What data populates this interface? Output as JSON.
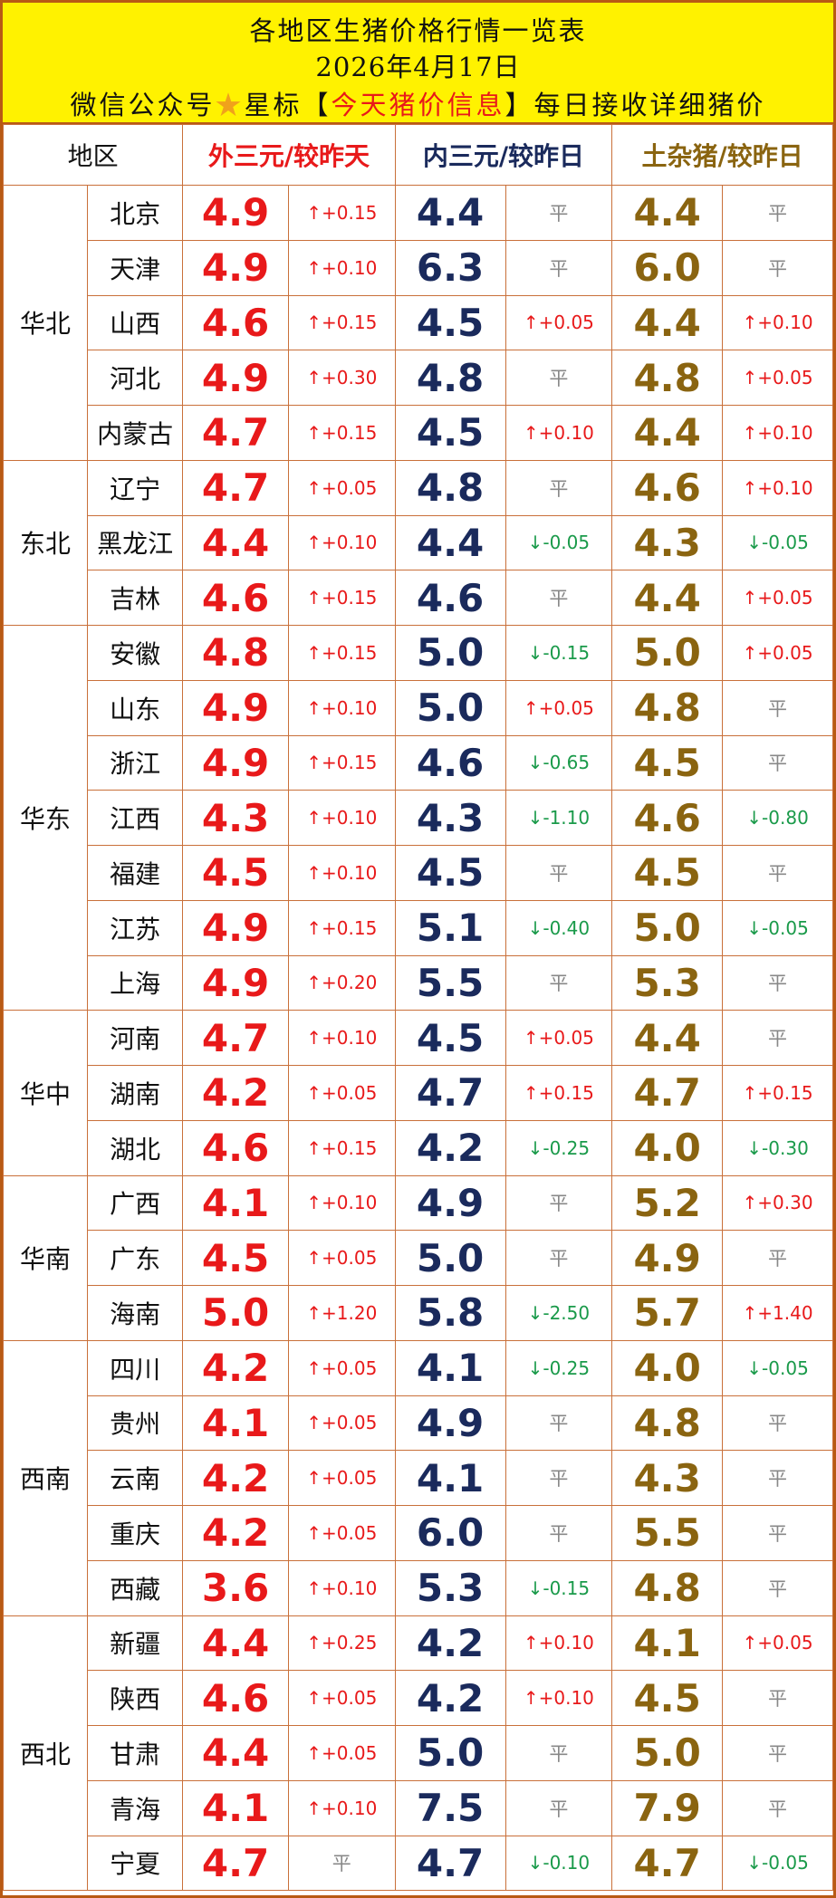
{
  "header": {
    "title": "各地区生猪价格行情一览表",
    "date": "2026年4月17日",
    "line3_prefix": "微信公众号",
    "line3_star": "★",
    "line3_mid": "星标【",
    "line3_highlight": "今天猪价信息",
    "line3_suffix": "】每日接收详细猪价"
  },
  "columns": {
    "area": "地区",
    "ext": "外三元/较昨天",
    "int": "内三元/较昨日",
    "tu": "土杂猪/较昨日"
  },
  "groups": [
    {
      "name": "华北",
      "rows": [
        {
          "prov": "北京",
          "ext": "4.9",
          "ext_chg": "↑+0.15",
          "int": "4.4",
          "int_chg": "平",
          "tu": "4.4",
          "tu_chg": "平"
        },
        {
          "prov": "天津",
          "ext": "4.9",
          "ext_chg": "↑+0.10",
          "int": "6.3",
          "int_chg": "平",
          "tu": "6.0",
          "tu_chg": "平"
        },
        {
          "prov": "山西",
          "ext": "4.6",
          "ext_chg": "↑+0.15",
          "int": "4.5",
          "int_chg": "↑+0.05",
          "tu": "4.4",
          "tu_chg": "↑+0.10"
        },
        {
          "prov": "河北",
          "ext": "4.9",
          "ext_chg": "↑+0.30",
          "int": "4.8",
          "int_chg": "平",
          "tu": "4.8",
          "tu_chg": "↑+0.05"
        },
        {
          "prov": "内蒙古",
          "ext": "4.7",
          "ext_chg": "↑+0.15",
          "int": "4.5",
          "int_chg": "↑+0.10",
          "tu": "4.4",
          "tu_chg": "↑+0.10"
        }
      ]
    },
    {
      "name": "东北",
      "rows": [
        {
          "prov": "辽宁",
          "ext": "4.7",
          "ext_chg": "↑+0.05",
          "int": "4.8",
          "int_chg": "平",
          "tu": "4.6",
          "tu_chg": "↑+0.10"
        },
        {
          "prov": "黑龙江",
          "ext": "4.4",
          "ext_chg": "↑+0.10",
          "int": "4.4",
          "int_chg": "↓-0.05",
          "tu": "4.3",
          "tu_chg": "↓-0.05"
        },
        {
          "prov": "吉林",
          "ext": "4.6",
          "ext_chg": "↑+0.15",
          "int": "4.6",
          "int_chg": "平",
          "tu": "4.4",
          "tu_chg": "↑+0.05"
        }
      ]
    },
    {
      "name": "华东",
      "rows": [
        {
          "prov": "安徽",
          "ext": "4.8",
          "ext_chg": "↑+0.15",
          "int": "5.0",
          "int_chg": "↓-0.15",
          "tu": "5.0",
          "tu_chg": "↑+0.05"
        },
        {
          "prov": "山东",
          "ext": "4.9",
          "ext_chg": "↑+0.10",
          "int": "5.0",
          "int_chg": "↑+0.05",
          "tu": "4.8",
          "tu_chg": "平"
        },
        {
          "prov": "浙江",
          "ext": "4.9",
          "ext_chg": "↑+0.15",
          "int": "4.6",
          "int_chg": "↓-0.65",
          "tu": "4.5",
          "tu_chg": "平"
        },
        {
          "prov": "江西",
          "ext": "4.3",
          "ext_chg": "↑+0.10",
          "int": "4.3",
          "int_chg": "↓-1.10",
          "tu": "4.6",
          "tu_chg": "↓-0.80"
        },
        {
          "prov": "福建",
          "ext": "4.5",
          "ext_chg": "↑+0.10",
          "int": "4.5",
          "int_chg": "平",
          "tu": "4.5",
          "tu_chg": "平"
        },
        {
          "prov": "江苏",
          "ext": "4.9",
          "ext_chg": "↑+0.15",
          "int": "5.1",
          "int_chg": "↓-0.40",
          "tu": "5.0",
          "tu_chg": "↓-0.05"
        },
        {
          "prov": "上海",
          "ext": "4.9",
          "ext_chg": "↑+0.20",
          "int": "5.5",
          "int_chg": "平",
          "tu": "5.3",
          "tu_chg": "平"
        }
      ]
    },
    {
      "name": "华中",
      "rows": [
        {
          "prov": "河南",
          "ext": "4.7",
          "ext_chg": "↑+0.10",
          "int": "4.5",
          "int_chg": "↑+0.05",
          "tu": "4.4",
          "tu_chg": "平"
        },
        {
          "prov": "湖南",
          "ext": "4.2",
          "ext_chg": "↑+0.05",
          "int": "4.7",
          "int_chg": "↑+0.15",
          "tu": "4.7",
          "tu_chg": "↑+0.15"
        },
        {
          "prov": "湖北",
          "ext": "4.6",
          "ext_chg": "↑+0.15",
          "int": "4.2",
          "int_chg": "↓-0.25",
          "tu": "4.0",
          "tu_chg": "↓-0.30"
        }
      ]
    },
    {
      "name": "华南",
      "rows": [
        {
          "prov": "广西",
          "ext": "4.1",
          "ext_chg": "↑+0.10",
          "int": "4.9",
          "int_chg": "平",
          "tu": "5.2",
          "tu_chg": "↑+0.30"
        },
        {
          "prov": "广东",
          "ext": "4.5",
          "ext_chg": "↑+0.05",
          "int": "5.0",
          "int_chg": "平",
          "tu": "4.9",
          "tu_chg": "平"
        },
        {
          "prov": "海南",
          "ext": "5.0",
          "ext_chg": "↑+1.20",
          "int": "5.8",
          "int_chg": "↓-2.50",
          "tu": "5.7",
          "tu_chg": "↑+1.40"
        }
      ]
    },
    {
      "name": "西南",
      "rows": [
        {
          "prov": "四川",
          "ext": "4.2",
          "ext_chg": "↑+0.05",
          "int": "4.1",
          "int_chg": "↓-0.25",
          "tu": "4.0",
          "tu_chg": "↓-0.05"
        },
        {
          "prov": "贵州",
          "ext": "4.1",
          "ext_chg": "↑+0.05",
          "int": "4.9",
          "int_chg": "平",
          "tu": "4.8",
          "tu_chg": "平"
        },
        {
          "prov": "云南",
          "ext": "4.2",
          "ext_chg": "↑+0.05",
          "int": "4.1",
          "int_chg": "平",
          "tu": "4.3",
          "tu_chg": "平"
        },
        {
          "prov": "重庆",
          "ext": "4.2",
          "ext_chg": "↑+0.05",
          "int": "6.0",
          "int_chg": "平",
          "tu": "5.5",
          "tu_chg": "平"
        },
        {
          "prov": "西藏",
          "ext": "3.6",
          "ext_chg": "↑+0.10",
          "int": "5.3",
          "int_chg": "↓-0.15",
          "tu": "4.8",
          "tu_chg": "平"
        }
      ]
    },
    {
      "name": "西北",
      "rows": [
        {
          "prov": "新疆",
          "ext": "4.4",
          "ext_chg": "↑+0.25",
          "int": "4.2",
          "int_chg": "↑+0.10",
          "tu": "4.1",
          "tu_chg": "↑+0.05"
        },
        {
          "prov": "陕西",
          "ext": "4.6",
          "ext_chg": "↑+0.05",
          "int": "4.2",
          "int_chg": "↑+0.10",
          "tu": "4.5",
          "tu_chg": "平"
        },
        {
          "prov": "甘肃",
          "ext": "4.4",
          "ext_chg": "↑+0.05",
          "int": "5.0",
          "int_chg": "平",
          "tu": "5.0",
          "tu_chg": "平"
        },
        {
          "prov": "青海",
          "ext": "4.1",
          "ext_chg": "↑+0.10",
          "int": "7.5",
          "int_chg": "平",
          "tu": "7.9",
          "tu_chg": "平"
        },
        {
          "prov": "宁夏",
          "ext": "4.7",
          "ext_chg": "平",
          "int": "4.7",
          "int_chg": "↓-0.10",
          "tu": "4.7",
          "tu_chg": "↓-0.05"
        }
      ]
    }
  ],
  "colors": {
    "header_bg": "#fff200",
    "border": "#c9703a",
    "ext_price": "#e8191a",
    "int_price": "#1a2a5c",
    "tu_price": "#8a6410",
    "up": "#e8191a",
    "down": "#1a9a4a",
    "flat": "#888888"
  }
}
